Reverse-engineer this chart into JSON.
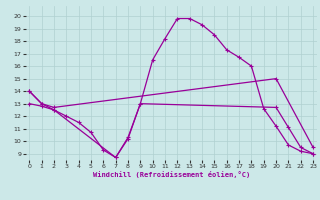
{
  "xlabel": "Windchill (Refroidissement éolien,°C)",
  "bg_color": "#cce8e8",
  "grid_color": "#b0d0d0",
  "line_color": "#990099",
  "x_ticks": [
    0,
    1,
    2,
    3,
    4,
    5,
    6,
    7,
    8,
    9,
    10,
    11,
    12,
    13,
    14,
    15,
    16,
    17,
    18,
    19,
    20,
    21,
    22,
    23
  ],
  "y_ticks": [
    9,
    10,
    11,
    12,
    13,
    14,
    15,
    16,
    17,
    18,
    19,
    20
  ],
  "ylim": [
    8.5,
    20.8
  ],
  "xlim": [
    -0.3,
    23.3
  ],
  "line1_x": [
    0,
    1,
    2,
    3,
    4,
    5,
    6,
    7,
    8,
    9,
    10,
    11,
    12,
    13,
    14,
    15,
    16,
    17,
    18,
    19,
    20,
    21,
    22,
    23
  ],
  "line1_y": [
    14.0,
    13.0,
    12.5,
    12.0,
    11.5,
    10.7,
    9.3,
    8.7,
    10.2,
    13.0,
    16.5,
    18.2,
    19.8,
    19.8,
    19.3,
    18.5,
    17.3,
    16.7,
    16.0,
    12.6,
    11.2,
    9.7,
    9.2,
    9.0
  ],
  "line2_x": [
    0,
    1,
    2,
    20,
    23
  ],
  "line2_y": [
    14.0,
    13.0,
    12.7,
    15.0,
    9.5
  ],
  "line3_x": [
    0,
    1,
    2,
    7,
    8,
    9,
    20,
    21,
    22,
    23
  ],
  "line3_y": [
    13.0,
    12.8,
    12.5,
    8.7,
    10.3,
    13.0,
    12.7,
    11.1,
    9.5,
    9.0
  ]
}
